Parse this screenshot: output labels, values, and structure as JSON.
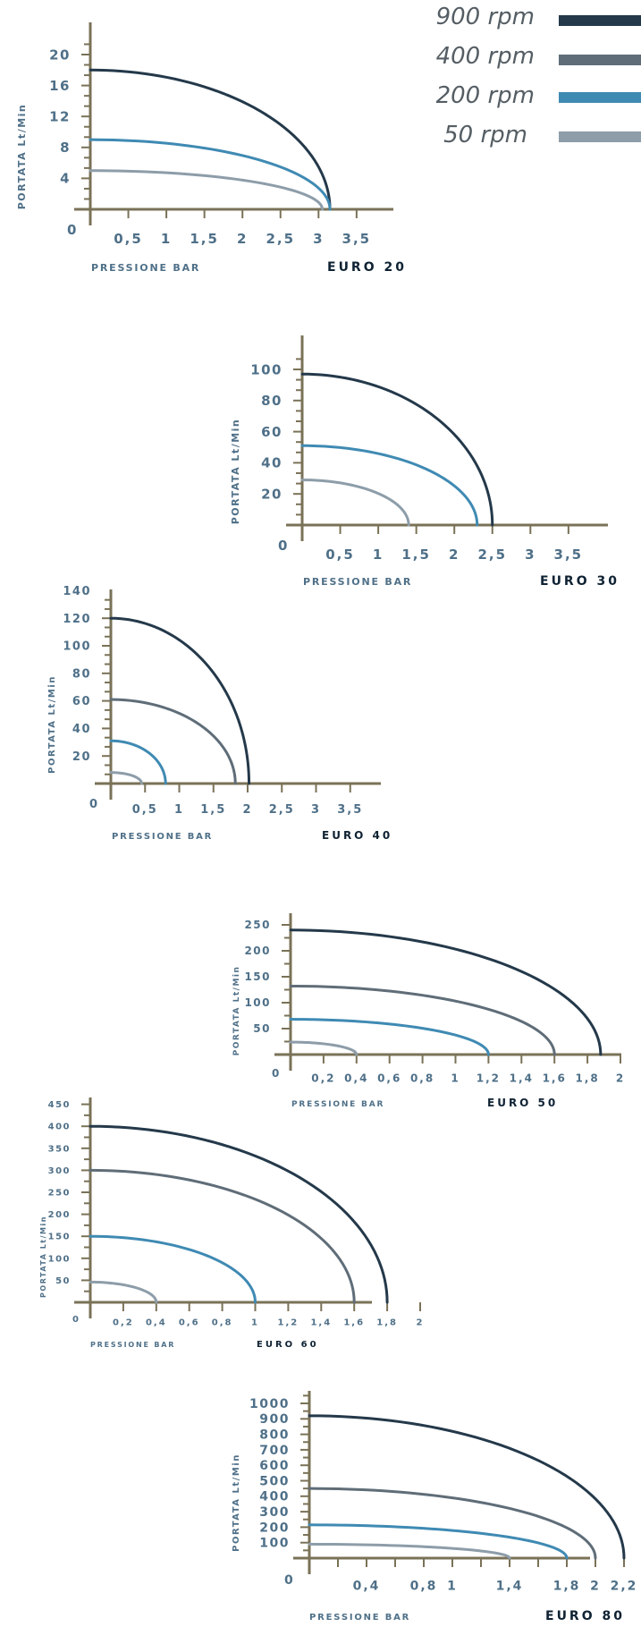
{
  "legend": [
    {
      "label": "900 rpm",
      "color": "#24394a"
    },
    {
      "label": "400 rpm",
      "color": "#5f6d78"
    },
    {
      "label": "200 rpm",
      "color": "#3f8ab3"
    },
    {
      "label": "50 rpm",
      "color": "#8d9da9"
    }
  ],
  "colors": {
    "axis": "#7a7257",
    "tick_text": "#4f7088",
    "title_text": "#0f2233",
    "ylabel_text": "#4f7088"
  },
  "chart_data": [
    {
      "type": "line",
      "title": "EURO 20",
      "xlabel": "PRESSIONE BAR",
      "ylabel": "PORTATA Lt/Min",
      "origin_label": "0",
      "xlim": [
        0,
        4
      ],
      "ylim": [
        0,
        24
      ],
      "xticks": [
        0.5,
        1,
        1.5,
        2,
        2.5,
        3,
        3.5
      ],
      "xtick_labels": [
        "0,5",
        "1",
        "1,5",
        "2",
        "2,5",
        "3",
        "3,5"
      ],
      "yticks": [
        4,
        8,
        12,
        16,
        20
      ],
      "ytick_labels": [
        "4",
        "8",
        "12",
        "16",
        "20"
      ],
      "grid": false,
      "series": [
        {
          "name": "900 rpm",
          "y0": 18,
          "x_end": 3.15
        },
        {
          "name": "200 rpm",
          "y0": 9,
          "x_end": 3.15
        },
        {
          "name": "50 rpm",
          "y0": 5,
          "x_end": 3.05
        }
      ]
    },
    {
      "type": "line",
      "title": "EURO 30",
      "xlabel": "PRESSIONE BAR",
      "ylabel": "PORTATA Lt/Min",
      "origin_label": "0",
      "xlim": [
        0,
        4
      ],
      "ylim": [
        0,
        120
      ],
      "xticks": [
        0.5,
        1,
        1.5,
        2,
        2.5,
        3,
        3.5
      ],
      "xtick_labels": [
        "0,5",
        "1",
        "1,5",
        "2",
        "2,5",
        "3",
        "3,5"
      ],
      "yticks": [
        20,
        40,
        60,
        80,
        100
      ],
      "ytick_labels": [
        "20",
        "40",
        "60",
        "80",
        "100"
      ],
      "grid": false,
      "series": [
        {
          "name": "900 rpm",
          "y0": 97,
          "x_end": 2.5
        },
        {
          "name": "200 rpm",
          "y0": 51,
          "x_end": 2.3
        },
        {
          "name": "50 rpm",
          "y0": 29,
          "x_end": 1.4
        }
      ]
    },
    {
      "type": "line",
      "title": "EURO 40",
      "xlabel": "PRESSIONE BAR",
      "ylabel": "PORTATA Lt/Min",
      "origin_label": "0",
      "xlim": [
        0,
        4
      ],
      "ylim": [
        0,
        140
      ],
      "xticks": [
        0.5,
        1,
        1.5,
        2,
        2.5,
        3,
        3.5
      ],
      "xtick_labels": [
        "0,5",
        "1",
        "1,5",
        "2",
        "2,5",
        "3",
        "3,5"
      ],
      "yticks": [
        20,
        40,
        60,
        80,
        100,
        120,
        140
      ],
      "ytick_labels": [
        "20",
        "40",
        "60",
        "80",
        "100",
        "120",
        "140"
      ],
      "grid": false,
      "series": [
        {
          "name": "900 rpm",
          "y0": 120,
          "x_end": 2.02
        },
        {
          "name": "400 rpm",
          "y0": 61,
          "x_end": 1.82
        },
        {
          "name": "200 rpm",
          "y0": 31,
          "x_end": 0.8
        },
        {
          "name": "50 rpm",
          "y0": 8,
          "x_end": 0.45
        }
      ]
    },
    {
      "type": "line",
      "title": "EURO 50",
      "xlabel": "PRESSIONE BAR",
      "ylabel": "PORTATA Lt/Min",
      "origin_label": "0",
      "xlim": [
        0,
        2.2
      ],
      "ylim": [
        0,
        270
      ],
      "xticks": [
        0.2,
        0.4,
        0.6,
        0.8,
        1,
        1.2,
        1.4,
        1.6,
        1.8,
        2
      ],
      "xtick_labels": [
        "0,2",
        "0,4",
        "0,6",
        "0,8",
        "1",
        "1,2",
        "1,4",
        "1,6",
        "1,8",
        "2"
      ],
      "yticks": [
        50,
        100,
        150,
        200,
        250
      ],
      "ytick_labels": [
        "50",
        "100",
        "150",
        "200",
        "250"
      ],
      "grid": false,
      "series": [
        {
          "name": "900 rpm",
          "y0": 240,
          "x_end": 1.88
        },
        {
          "name": "400 rpm",
          "y0": 132,
          "x_end": 1.6
        },
        {
          "name": "200 rpm",
          "y0": 68,
          "x_end": 1.2
        },
        {
          "name": "50 rpm",
          "y0": 24,
          "x_end": 0.4
        }
      ]
    },
    {
      "type": "line",
      "title": "EURO 60",
      "xlabel": "PRESSIONE BAR",
      "ylabel": "PORTATA Lt/Min",
      "origin_label": "0",
      "xlim": [
        0,
        2.2
      ],
      "ylim": [
        0,
        460
      ],
      "xticks": [
        0.2,
        0.4,
        0.6,
        0.8,
        1,
        1.2,
        1.4,
        1.6,
        1.8,
        2
      ],
      "xtick_labels": [
        "0,2",
        "0,4",
        "0,6",
        "0,8",
        "1",
        "1,2",
        "1,4",
        "1,6",
        "1,8",
        "2"
      ],
      "yticks": [
        50,
        100,
        150,
        200,
        250,
        300,
        350,
        400,
        450
      ],
      "ytick_labels": [
        "50",
        "100",
        "150",
        "200",
        "250",
        "300",
        "350",
        "400",
        "450"
      ],
      "grid": false,
      "series": [
        {
          "name": "900 rpm",
          "y0": 400,
          "x_end": 1.8
        },
        {
          "name": "400 rpm",
          "y0": 300,
          "x_end": 1.6
        },
        {
          "name": "200 rpm",
          "y0": 150,
          "x_end": 1
        },
        {
          "name": "50 rpm",
          "y0": 46,
          "x_end": 0.4
        }
      ]
    },
    {
      "type": "line",
      "title": "EURO 80",
      "xlabel": "PRESSIONE BAR",
      "ylabel": "PORTATA Lt/Min",
      "origin_label": "0",
      "xlim": [
        0,
        2.5
      ],
      "ylim": [
        0,
        1050
      ],
      "xticks": [
        0.2,
        0.4,
        0.6,
        0.8,
        1,
        1.2,
        1.4,
        1.6,
        1.8,
        2,
        2.2
      ],
      "xtick_labels": [
        "",
        "0,4",
        "",
        "0,8",
        "1",
        "",
        "1,4",
        "",
        "1,8",
        "2",
        "2,2"
      ],
      "yticks": [
        100,
        200,
        300,
        400,
        500,
        600,
        700,
        800,
        900,
        1000
      ],
      "ytick_labels": [
        "100",
        "200",
        "300",
        "400",
        "500",
        "600",
        "700",
        "800",
        "900",
        "1000"
      ],
      "grid": false,
      "series": [
        {
          "name": "900 rpm",
          "y0": 920,
          "x_end": 2.2
        },
        {
          "name": "400 rpm",
          "y0": 450,
          "x_end": 2
        },
        {
          "name": "200 rpm",
          "y0": 215,
          "x_end": 1.8
        },
        {
          "name": "50 rpm",
          "y0": 90,
          "x_end": 1.4
        }
      ]
    }
  ]
}
